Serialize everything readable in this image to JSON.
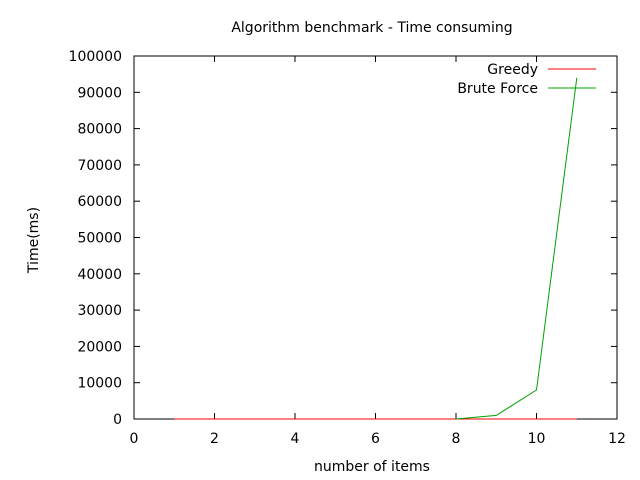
{
  "chart_data": {
    "type": "line",
    "title": "Algorithm benchmark - Time consuming",
    "xlabel": "number of items",
    "ylabel": "Time(ms)",
    "xlim": [
      0,
      12
    ],
    "ylim": [
      0,
      100000
    ],
    "xticks": [
      0,
      2,
      4,
      6,
      8,
      10,
      12
    ],
    "yticks": [
      0,
      10000,
      20000,
      30000,
      40000,
      50000,
      60000,
      70000,
      80000,
      90000,
      100000
    ],
    "grid": false,
    "legend_position": "top-right",
    "series": [
      {
        "name": "Greedy",
        "color": "#ff0000",
        "x": [
          1,
          2,
          3,
          4,
          5,
          6,
          7,
          8,
          9,
          10,
          11
        ],
        "y": [
          0,
          0,
          0,
          0,
          0,
          0,
          0,
          0,
          0,
          0,
          0
        ]
      },
      {
        "name": "Brute Force",
        "color": "#00a000",
        "x": [
          8,
          9,
          10,
          11
        ],
        "y": [
          0,
          1000,
          8000,
          94000
        ]
      }
    ]
  }
}
